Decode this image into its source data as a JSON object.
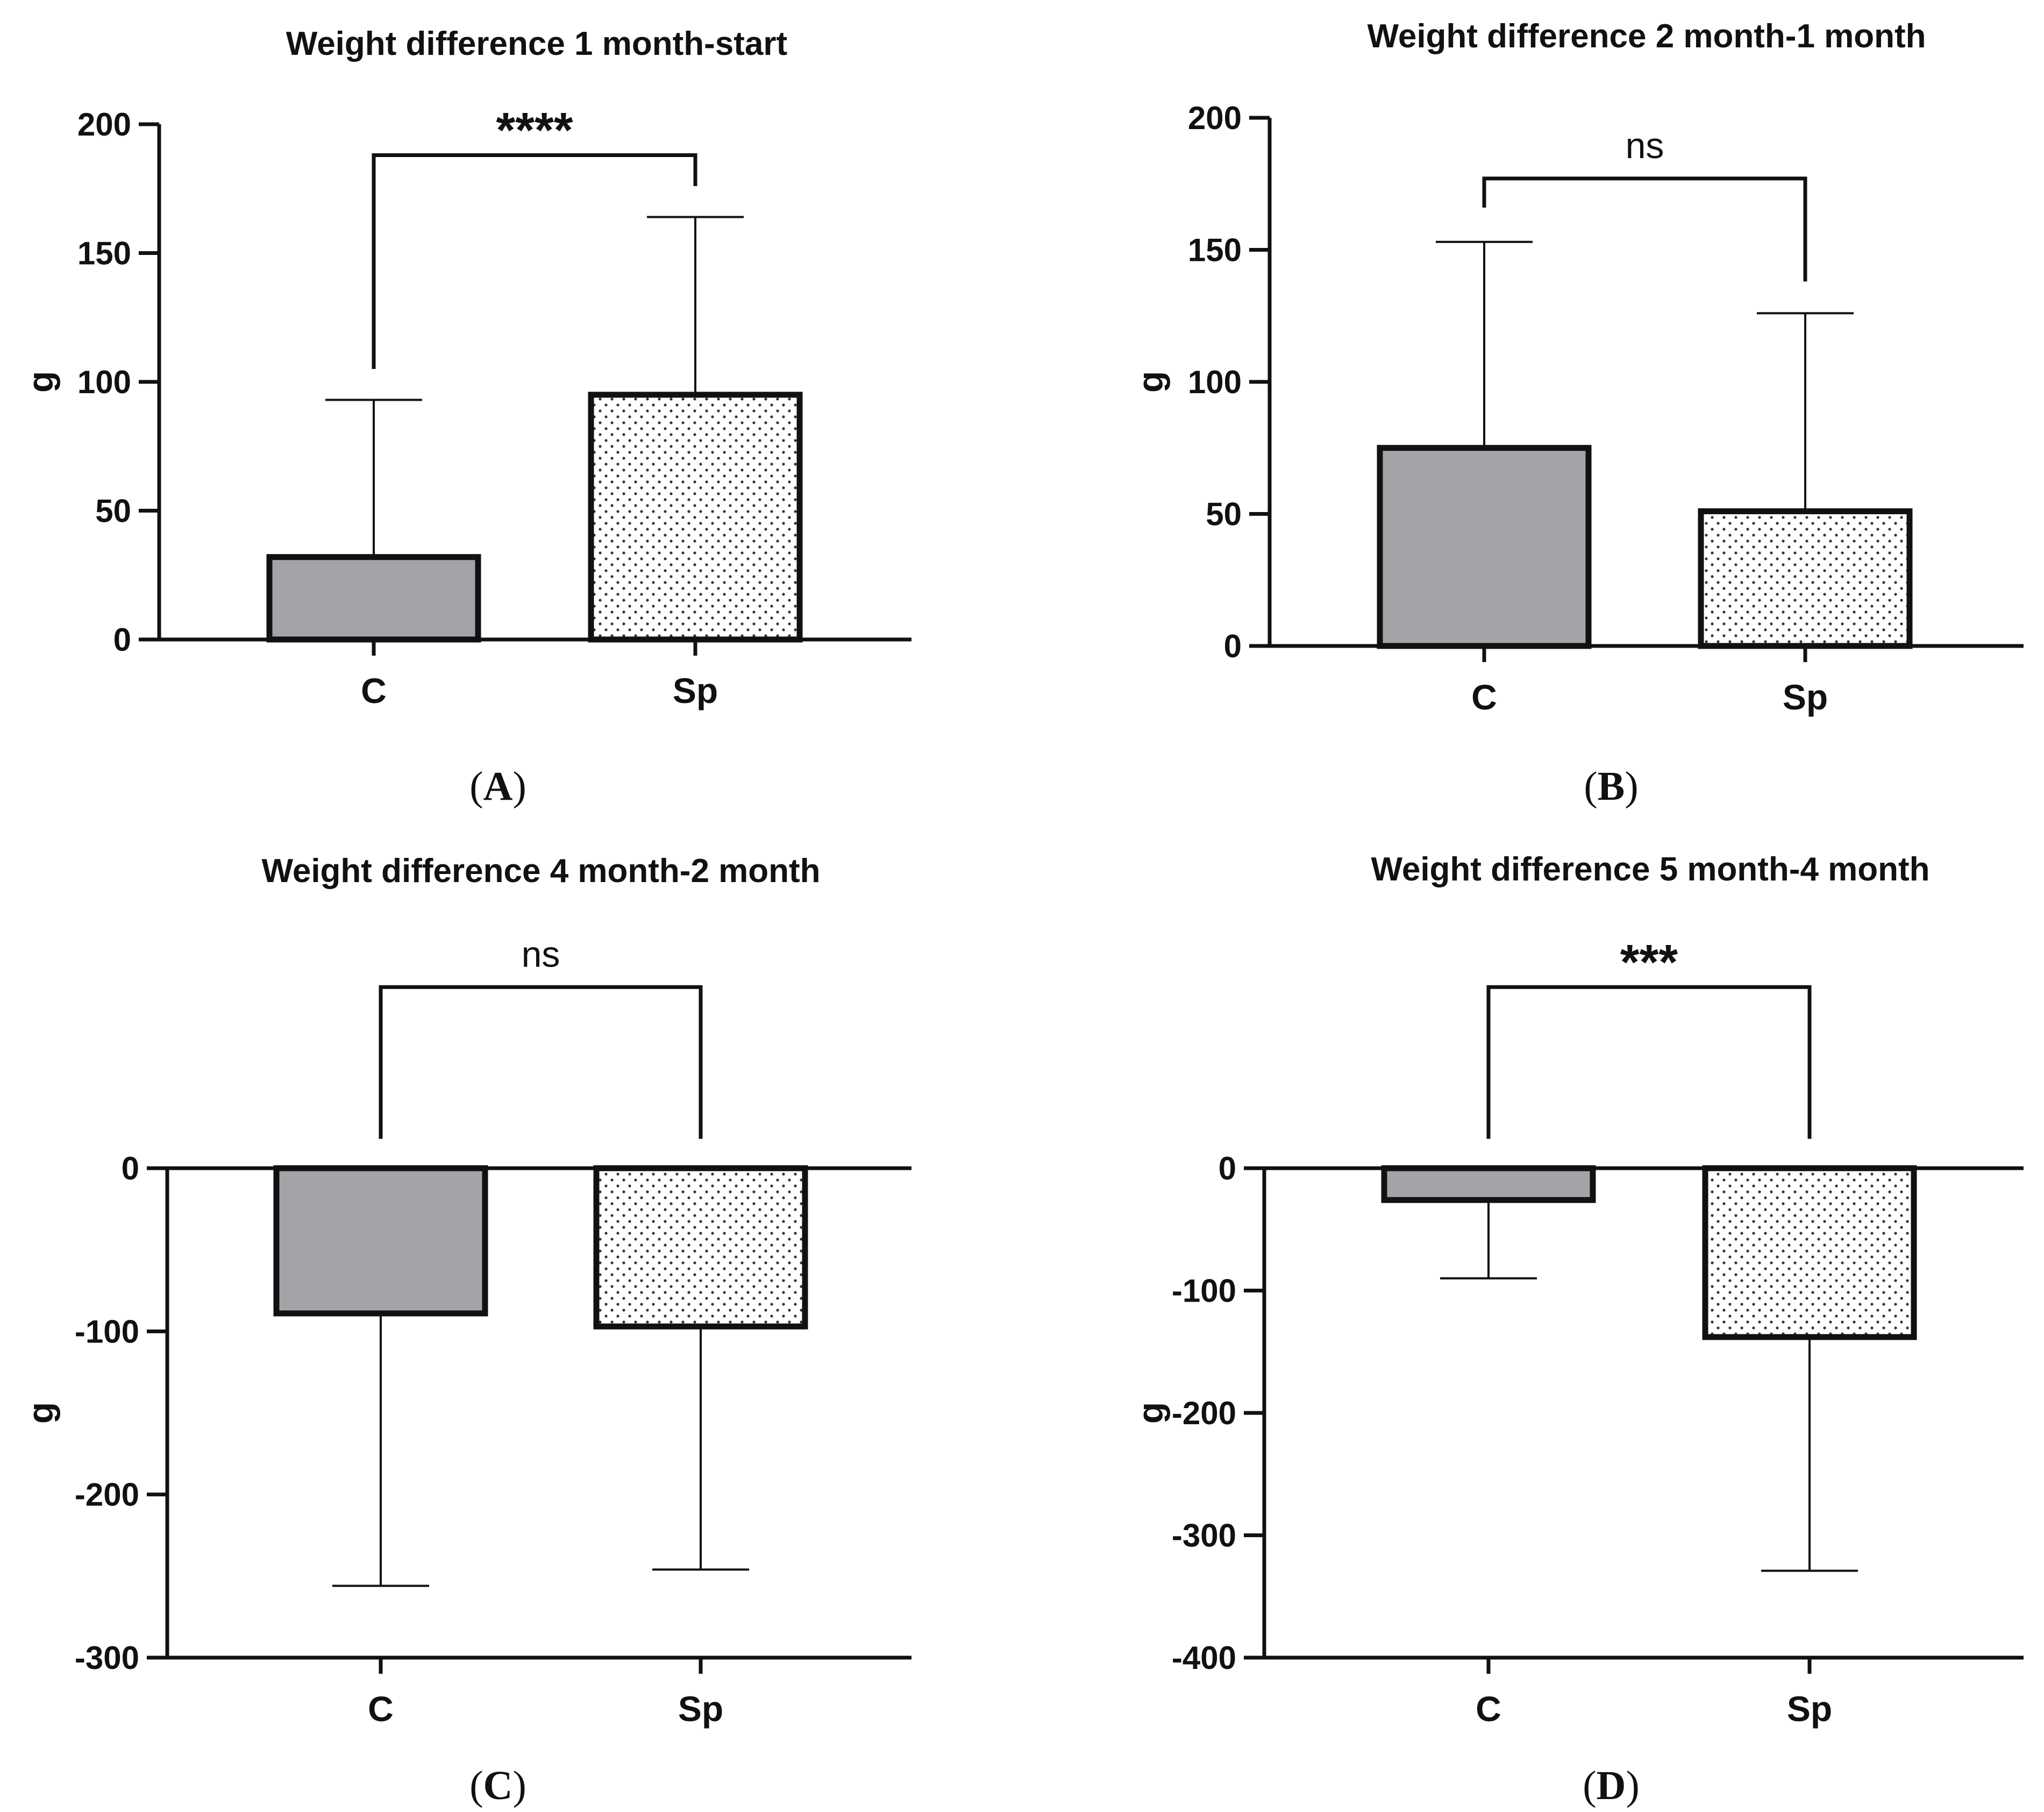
{
  "colors": {
    "control_fill": "#a4a3a8",
    "dotted_fill": "#ffffff",
    "dot_color": "#333333",
    "ink": "#111111"
  },
  "chart_data": [
    {
      "panel": "A",
      "type": "bar",
      "title": "Weight difference 1 month-start",
      "ylabel": "g",
      "xlabel": "",
      "categories": [
        "C",
        "Sp"
      ],
      "values": [
        32,
        95
      ],
      "error_upper": [
        93,
        164
      ],
      "ylim": [
        0,
        200
      ],
      "yticks": [
        0,
        50,
        100,
        150,
        200
      ],
      "ytick_labels": [
        "0",
        "50",
        "100",
        "150",
        "200"
      ],
      "significance": "****",
      "bracket_y": 188,
      "bracket_left_bottom": 105,
      "bracket_right_bottom": 176
    },
    {
      "panel": "B",
      "type": "bar",
      "title": "Weight difference 2 month-1 month",
      "ylabel": "g",
      "xlabel": "",
      "categories": [
        "C",
        "Sp"
      ],
      "values": [
        75,
        51
      ],
      "error_upper": [
        153,
        126
      ],
      "ylim": [
        0,
        200
      ],
      "yticks": [
        0,
        50,
        100,
        150,
        200
      ],
      "ytick_labels": [
        "0",
        "50",
        "100",
        "150",
        "200"
      ],
      "significance": "ns",
      "bracket_y": 177,
      "bracket_left_bottom": 166,
      "bracket_right_bottom": 138
    },
    {
      "panel": "C",
      "type": "bar",
      "title": "Weight difference 4 month-2 month",
      "ylabel": "g",
      "xlabel": "",
      "categories": [
        "C",
        "Sp"
      ],
      "values": [
        -89,
        -97
      ],
      "error_lower": [
        -256,
        -246
      ],
      "ylim": [
        -300,
        0
      ],
      "yticks": [
        0,
        -100,
        -200,
        -300
      ],
      "ytick_labels": [
        "0",
        "-100",
        "-200",
        "-300"
      ],
      "significance": "ns",
      "bracket_y": 111,
      "bracket_left_bottom": 18,
      "bracket_right_bottom": 18
    },
    {
      "panel": "D",
      "type": "bar",
      "title": "Weight difference 5 month-4 month",
      "ylabel": "g",
      "xlabel": "",
      "categories": [
        "C",
        "Sp"
      ],
      "values": [
        -26,
        -138
      ],
      "error_lower": [
        -90,
        -329
      ],
      "ylim": [
        -400,
        0
      ],
      "yticks": [
        0,
        -100,
        -200,
        -300,
        -400
      ],
      "ytick_labels": [
        "0",
        "-100",
        "-200",
        "-300",
        "-400"
      ],
      "significance": "***",
      "bracket_y": 148,
      "bracket_left_bottom": 24,
      "bracket_right_bottom": 24
    }
  ]
}
